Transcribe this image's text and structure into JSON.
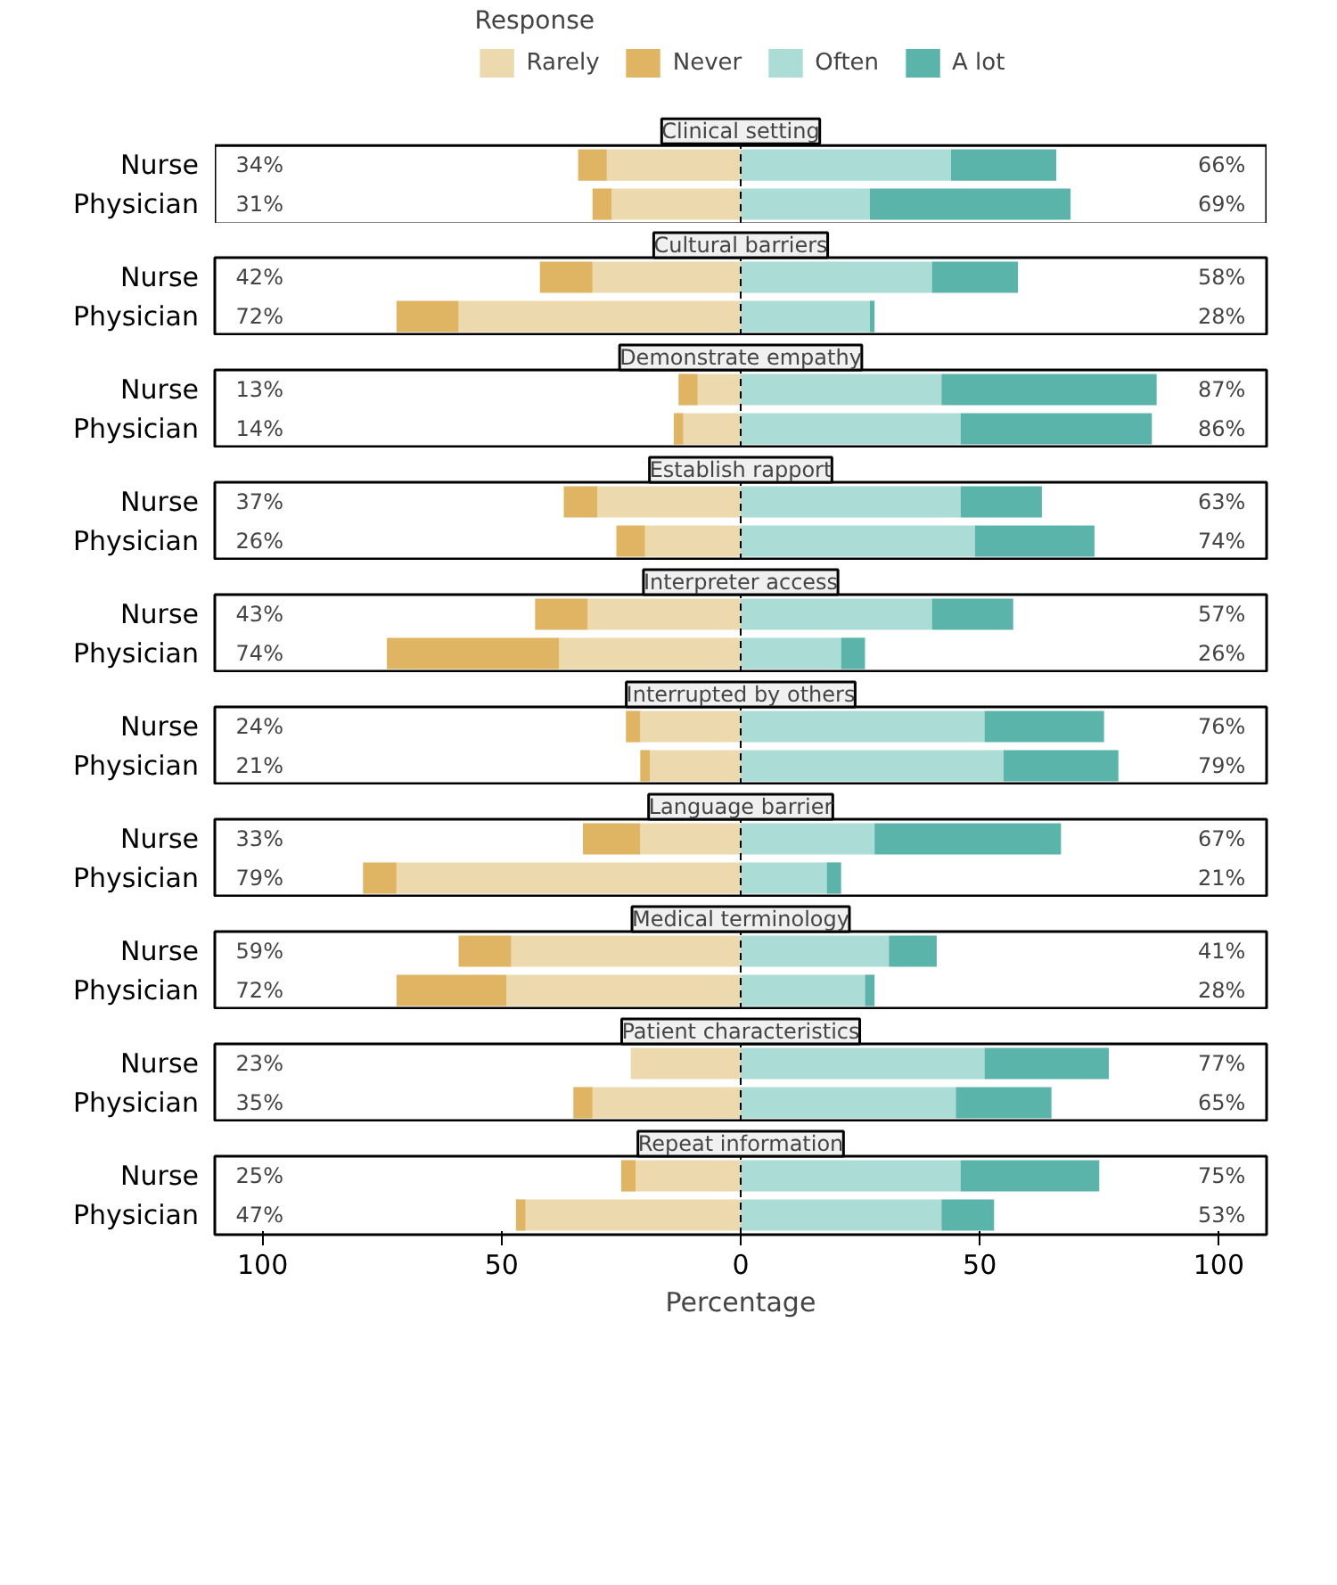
{
  "chart_data": [
    {
      "type": "bar",
      "orientation": "horizontal",
      "stacked": true,
      "title": "Clinical setting",
      "legend": "top",
      "legend_title": "Response",
      "categories": [
        "Nurse",
        "Physician"
      ],
      "xlim": [
        -110,
        110
      ],
      "tick_labels": "y",
      "grid": false,
      "series": [
        {
          "name": "Rarely",
          "color": "#ecd9ad",
          "values": [
            -28,
            -27
          ]
        },
        {
          "name": "Never",
          "color": "#dfb463",
          "values": [
            -6,
            -4
          ]
        },
        {
          "name": "Often",
          "color": "#acdcd6",
          "values": [
            44,
            27
          ]
        },
        {
          "name": "A lot",
          "color": "#5ab4aa",
          "values": [
            22,
            42
          ]
        }
      ],
      "ref_lines": [
        {
          "axis": "x",
          "value": 0,
          "line_style": "dashed",
          "color": "#000000"
        }
      ],
      "annotations": [
        "34%",
        "31%",
        "66%",
        "69%"
      ]
    },
    {
      "type": "bar",
      "orientation": "horizontal",
      "stacked": true,
      "title": "Cultural barriers",
      "categories": [
        "Nurse",
        "Physician"
      ],
      "xlim": [
        -110,
        110
      ],
      "tick_labels": "y",
      "grid": false,
      "series": [
        {
          "color": "#ecd9ad",
          "values": [
            -31,
            -59
          ]
        },
        {
          "color": "#dfb463",
          "values": [
            -11,
            -13
          ]
        },
        {
          "color": "#acdcd6",
          "values": [
            40,
            27
          ]
        },
        {
          "color": "#5ab4aa",
          "values": [
            18,
            1
          ]
        }
      ],
      "ref_lines": [
        {
          "axis": "x",
          "value": 0,
          "line_style": "dashed",
          "color": "#000000"
        }
      ],
      "annotations": [
        "42%",
        "72%",
        "58%",
        "28%"
      ]
    },
    {
      "type": "bar",
      "orientation": "horizontal",
      "stacked": true,
      "title": "Demonstrate empathy",
      "categories": [
        "Nurse",
        "Physician"
      ],
      "xlim": [
        -110,
        110
      ],
      "tick_labels": "y",
      "grid": false,
      "series": [
        {
          "color": "#ecd9ad",
          "values": [
            -9,
            -12
          ]
        },
        {
          "color": "#dfb463",
          "values": [
            -4,
            -2
          ]
        },
        {
          "color": "#acdcd6",
          "values": [
            42,
            46
          ]
        },
        {
          "color": "#5ab4aa",
          "values": [
            45,
            40
          ]
        }
      ],
      "ref_lines": [
        {
          "axis": "x",
          "value": 0,
          "line_style": "dashed",
          "color": "#000000"
        }
      ],
      "annotations": [
        "13%",
        "14%",
        "87%",
        "86%"
      ]
    },
    {
      "type": "bar",
      "orientation": "horizontal",
      "stacked": true,
      "title": "Establish rapport",
      "categories": [
        "Nurse",
        "Physician"
      ],
      "xlim": [
        -110,
        110
      ],
      "tick_labels": "y",
      "grid": false,
      "series": [
        {
          "color": "#ecd9ad",
          "values": [
            -30,
            -20
          ]
        },
        {
          "color": "#dfb463",
          "values": [
            -7,
            -6
          ]
        },
        {
          "color": "#acdcd6",
          "values": [
            46,
            49
          ]
        },
        {
          "color": "#5ab4aa",
          "values": [
            17,
            25
          ]
        }
      ],
      "ref_lines": [
        {
          "axis": "x",
          "value": 0,
          "line_style": "dashed",
          "color": "#000000"
        }
      ],
      "annotations": [
        "37%",
        "26%",
        "63%",
        "74%"
      ]
    },
    {
      "type": "bar",
      "orientation": "horizontal",
      "stacked": true,
      "title": "Interpreter access",
      "categories": [
        "Nurse",
        "Physician"
      ],
      "xlim": [
        -110,
        110
      ],
      "tick_labels": "y",
      "grid": false,
      "series": [
        {
          "color": "#ecd9ad",
          "values": [
            -32,
            -38
          ]
        },
        {
          "color": "#dfb463",
          "values": [
            -11,
            -36
          ]
        },
        {
          "color": "#acdcd6",
          "values": [
            40,
            21
          ]
        },
        {
          "color": "#5ab4aa",
          "values": [
            17,
            5
          ]
        }
      ],
      "ref_lines": [
        {
          "axis": "x",
          "value": 0,
          "line_style": "dashed",
          "color": "#000000"
        }
      ],
      "annotations": [
        "43%",
        "74%",
        "57%",
        "26%"
      ]
    },
    {
      "type": "bar",
      "orientation": "horizontal",
      "stacked": true,
      "title": "Interrupted by others",
      "categories": [
        "Nurse",
        "Physician"
      ],
      "xlim": [
        -110,
        110
      ],
      "tick_labels": "y",
      "grid": false,
      "series": [
        {
          "color": "#ecd9ad",
          "values": [
            -21,
            -19
          ]
        },
        {
          "color": "#dfb463",
          "values": [
            -3,
            -2
          ]
        },
        {
          "color": "#acdcd6",
          "values": [
            51,
            55
          ]
        },
        {
          "color": "#5ab4aa",
          "values": [
            25,
            24
          ]
        }
      ],
      "ref_lines": [
        {
          "axis": "x",
          "value": 0,
          "line_style": "dashed",
          "color": "#000000"
        }
      ],
      "annotations": [
        "24%",
        "21%",
        "76%",
        "79%"
      ]
    },
    {
      "type": "bar",
      "orientation": "horizontal",
      "stacked": true,
      "title": "Language barrier",
      "categories": [
        "Nurse",
        "Physician"
      ],
      "xlim": [
        -110,
        110
      ],
      "tick_labels": "y",
      "grid": false,
      "series": [
        {
          "color": "#ecd9ad",
          "values": [
            -21,
            -72
          ]
        },
        {
          "color": "#dfb463",
          "values": [
            -12,
            -7
          ]
        },
        {
          "color": "#acdcd6",
          "values": [
            28,
            18
          ]
        },
        {
          "color": "#5ab4aa",
          "values": [
            39,
            3
          ]
        }
      ],
      "ref_lines": [
        {
          "axis": "x",
          "value": 0,
          "line_style": "dashed",
          "color": "#000000"
        }
      ],
      "annotations": [
        "33%",
        "79%",
        "67%",
        "21%"
      ]
    },
    {
      "type": "bar",
      "orientation": "horizontal",
      "stacked": true,
      "title": "Medical terminology",
      "categories": [
        "Nurse",
        "Physician"
      ],
      "xlim": [
        -110,
        110
      ],
      "tick_labels": "y",
      "grid": false,
      "series": [
        {
          "color": "#ecd9ad",
          "values": [
            -48,
            -49
          ]
        },
        {
          "color": "#dfb463",
          "values": [
            -11,
            -23
          ]
        },
        {
          "color": "#acdcd6",
          "values": [
            31,
            26
          ]
        },
        {
          "color": "#5ab4aa",
          "values": [
            10,
            2
          ]
        }
      ],
      "ref_lines": [
        {
          "axis": "x",
          "value": 0,
          "line_style": "dashed",
          "color": "#000000"
        }
      ],
      "annotations": [
        "59%",
        "72%",
        "41%",
        "28%"
      ]
    },
    {
      "type": "bar",
      "orientation": "horizontal",
      "stacked": true,
      "title": "Patient characteristics",
      "categories": [
        "Nurse",
        "Physician"
      ],
      "xlim": [
        -110,
        110
      ],
      "tick_labels": "y",
      "grid": false,
      "series": [
        {
          "color": "#ecd9ad",
          "values": [
            -23,
            -31
          ]
        },
        {
          "color": "#dfb463",
          "values": [
            0,
            -4
          ]
        },
        {
          "color": "#acdcd6",
          "values": [
            51,
            45
          ]
        },
        {
          "color": "#5ab4aa",
          "values": [
            26,
            20
          ]
        }
      ],
      "ref_lines": [
        {
          "axis": "x",
          "value": 0,
          "line_style": "dashed",
          "color": "#000000"
        }
      ],
      "annotations": [
        "23%",
        "35%",
        "77%",
        "65%"
      ]
    },
    {
      "type": "bar",
      "orientation": "horizontal",
      "stacked": true,
      "title": "Repeat information",
      "xlabel": "Percentage",
      "categories": [
        "Nurse",
        "Physician"
      ],
      "xlim": [
        -110,
        110
      ],
      "xticks": [
        {
          "value": -100,
          "label": "100"
        },
        {
          "value": -50,
          "label": "50"
        },
        0,
        50,
        100
      ],
      "grid": false,
      "series": [
        {
          "color": "#ecd9ad",
          "values": [
            -22,
            -45
          ]
        },
        {
          "color": "#dfb463",
          "values": [
            -3,
            -2
          ]
        },
        {
          "color": "#acdcd6",
          "values": [
            46,
            42
          ]
        },
        {
          "color": "#5ab4aa",
          "values": [
            29,
            11
          ]
        }
      ],
      "ref_lines": [
        {
          "axis": "x",
          "value": 0,
          "line_style": "dashed",
          "color": "#000000"
        }
      ],
      "annotations": [
        "25%",
        "47%",
        "75%",
        "53%"
      ]
    }
  ]
}
